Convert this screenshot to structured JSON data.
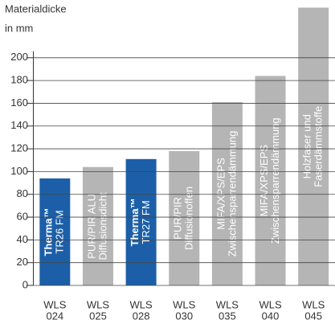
{
  "chart_data": {
    "type": "bar",
    "y_label": [
      "Materialdicke",
      "in mm"
    ],
    "categories": [
      [
        "WLS",
        "024"
      ],
      [
        "WLS",
        "025"
      ],
      [
        "WLS",
        "028"
      ],
      [
        "WLS",
        "030"
      ],
      [
        "WLS",
        "035"
      ],
      [
        "WLS",
        "040"
      ],
      [
        "WLS",
        "045"
      ]
    ],
    "values": [
      94,
      104,
      111,
      118,
      161,
      184,
      244
    ],
    "colors": [
      "#1c5fa8",
      "#b5b5b5",
      "#1c5fa8",
      "#b5b5b5",
      "#b5b5b5",
      "#b5b5b5",
      "#b5b5b5"
    ],
    "bar_labels": [
      [
        "Therma™",
        "TR26 FM"
      ],
      [
        "PUR/PIR ALU",
        "Diffusionsdicht"
      ],
      [
        "Therma™",
        "TR27 FM"
      ],
      [
        "PUR/PIR",
        "Diffusionoffen"
      ],
      [
        "MIFA/XPS/EPS",
        "Zwischensparrendämmung"
      ],
      [
        "MIFA/XPS/EPS",
        "Zwischensparrendämmung"
      ],
      [
        "Holzfaser und",
        "Faserdämmstoffe"
      ]
    ],
    "bold_first_line": [
      true,
      false,
      true,
      false,
      false,
      false,
      false
    ],
    "ylim": [
      0,
      250
    ],
    "yticks": [
      0,
      20,
      40,
      60,
      80,
      100,
      120,
      140,
      160,
      180,
      200
    ],
    "grid": true
  }
}
